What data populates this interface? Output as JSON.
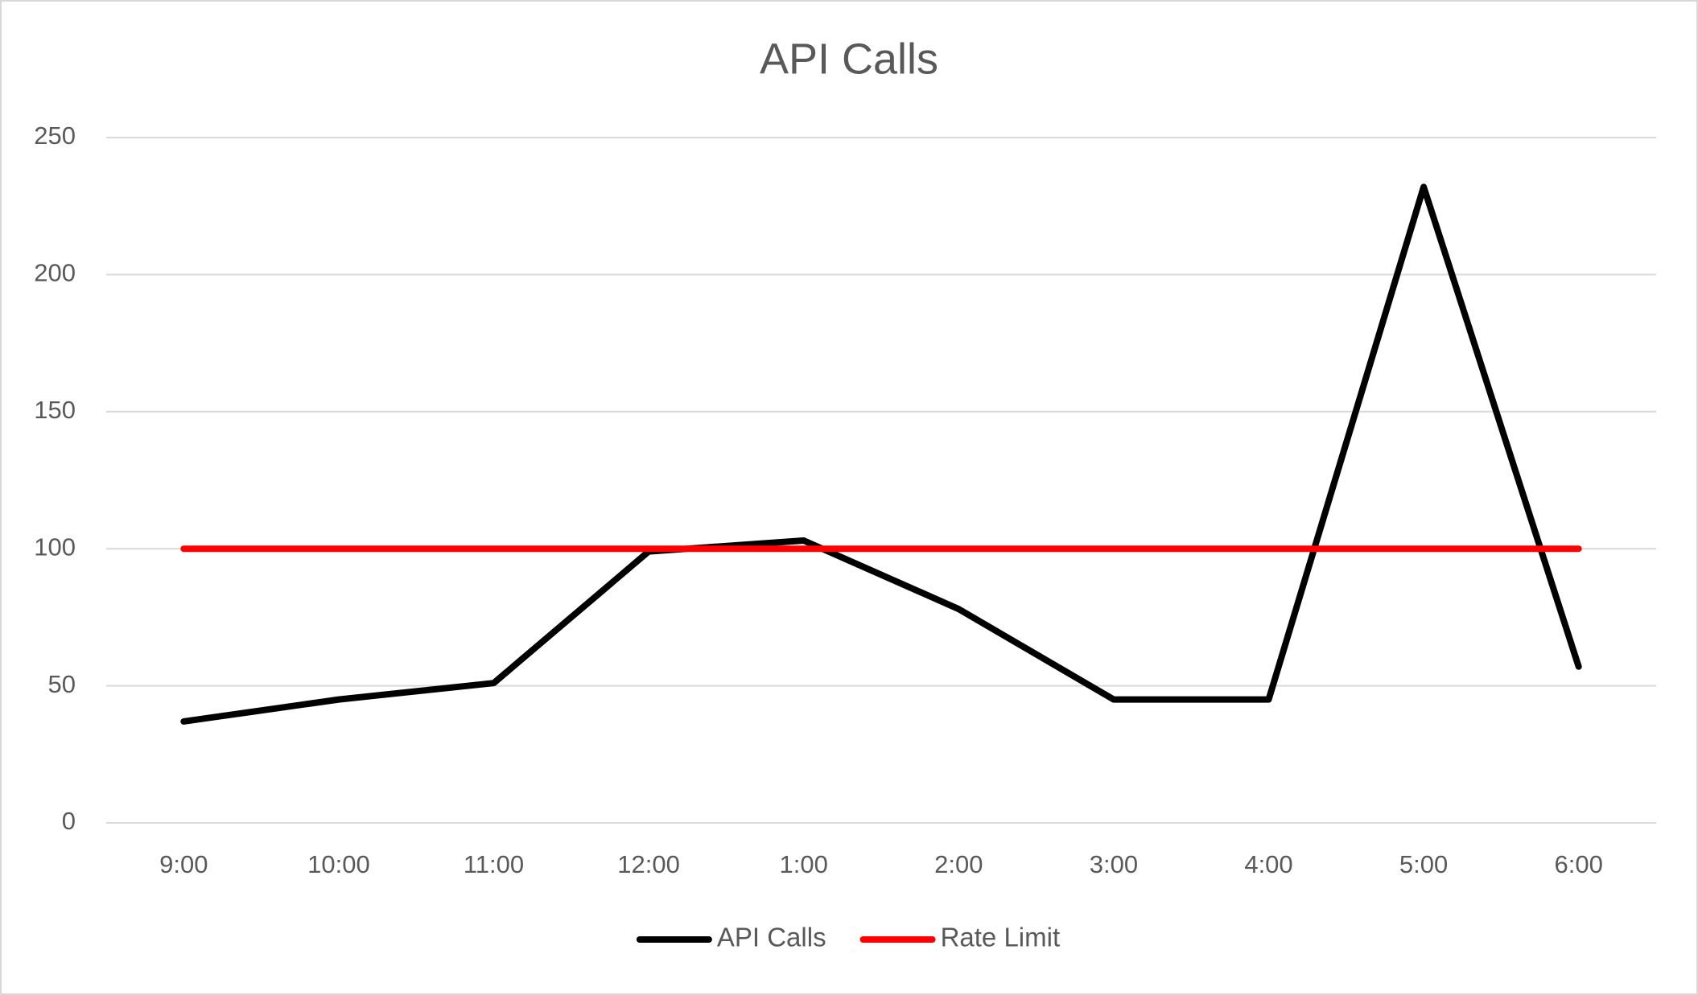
{
  "chart_data": {
    "type": "line",
    "title": "API Calls",
    "categories": [
      "9:00",
      "10:00",
      "11:00",
      "12:00",
      "1:00",
      "2:00",
      "3:00",
      "4:00",
      "5:00",
      "6:00"
    ],
    "series": [
      {
        "name": "API Calls",
        "color": "#000000",
        "values": [
          37,
          45,
          51,
          99,
          103,
          78,
          45,
          45,
          232,
          57
        ]
      },
      {
        "name": "Rate Limit",
        "color": "#ff0000",
        "values": [
          100,
          100,
          100,
          100,
          100,
          100,
          100,
          100,
          100,
          100
        ]
      }
    ],
    "ylim": [
      0,
      250
    ],
    "yticks": [
      0,
      50,
      100,
      150,
      200,
      250
    ],
    "grid": true,
    "legend": "bottom"
  }
}
